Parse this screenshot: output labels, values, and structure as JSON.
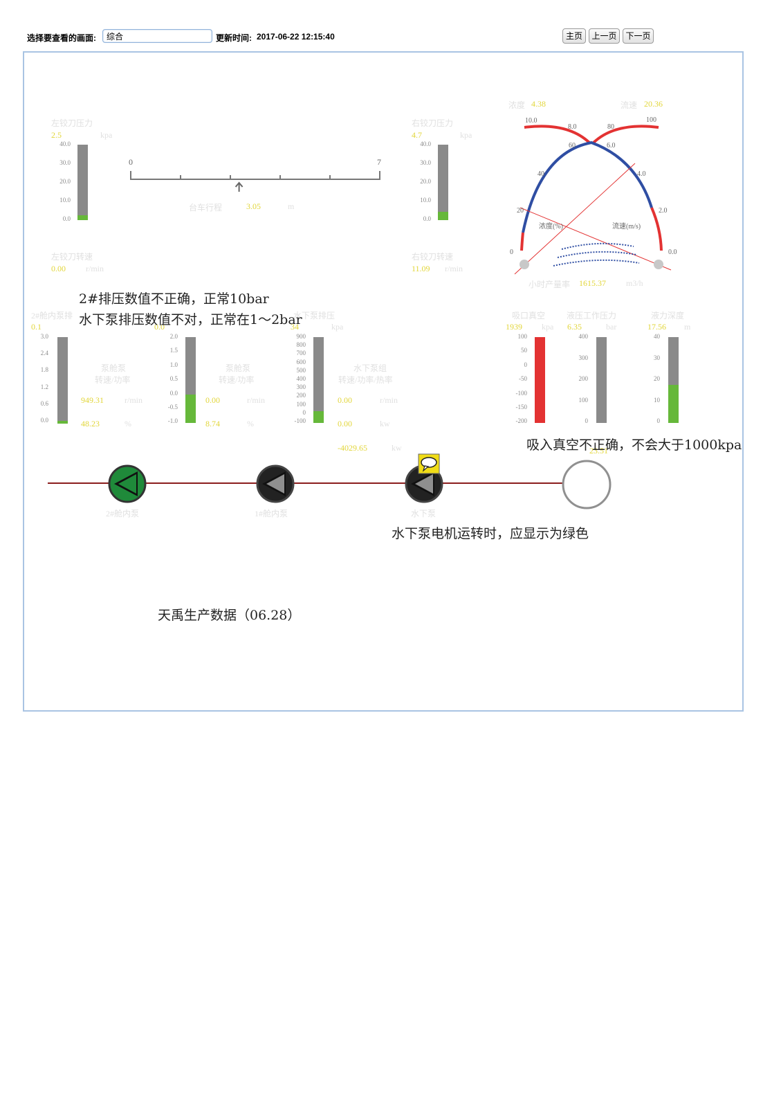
{
  "header": {
    "select_label": "选择要查看的画面:",
    "select_value": "综合",
    "update_label": "更新时间:",
    "update_time": "2017-06-22 12:15:40",
    "nav": {
      "home": "主页",
      "prev": "上一页",
      "next": "下一页"
    }
  },
  "left_reamer": {
    "pressure_label": "左铰刀压力",
    "pressure_value": "2.5",
    "pressure_unit": "kpa",
    "speed_label": "左铰刀转速",
    "speed_value": "0.00",
    "speed_unit": "r/min",
    "ticks": [
      "40.0",
      "30.0",
      "20.0",
      "10.0",
      "0.0"
    ],
    "fill_fraction": 0.06
  },
  "right_reamer": {
    "pressure_label": "右铰刀压力",
    "pressure_value": "4.7",
    "pressure_unit": "kpa",
    "speed_label": "右铰刀转速",
    "speed_value": "11.09",
    "speed_unit": "r/min",
    "ticks": [
      "40.0",
      "30.0",
      "20.0",
      "10.0",
      "0.0"
    ],
    "fill_fraction": 0.11
  },
  "traverse": {
    "min": "0",
    "max": "7",
    "label": "台车行程",
    "value": "3.05",
    "unit": "m",
    "pointer_fraction": 0.435
  },
  "flow_gauge": {
    "density_label": "浓度",
    "density_value": "4.38",
    "flow_label": "流速",
    "flow_value": "20.36",
    "density_axis_label": "浓度(%)",
    "flow_axis_label": "流速(m/s)",
    "left_scale": [
      "10.0",
      "8.0",
      "6.0",
      "4.0",
      "2.0",
      "0.0"
    ],
    "right_scale": [
      "100",
      "80",
      "60",
      "40",
      "20",
      "0"
    ],
    "hour_label": "小时产量率",
    "hour_value": "1615.37",
    "hour_unit": "m3/h"
  },
  "pumps_row": {
    "p2_label": "2#舱内泵排",
    "p2_value": "0.1",
    "p2_ticks": [
      "3.0",
      "2.4",
      "1.8",
      "1.2",
      "0.6",
      "0.0"
    ],
    "p2_fill": 0.03,
    "p1_value": "0.0",
    "p1_ticks": [
      "2.0",
      "1.5",
      "1.0",
      "0.5",
      "0.0",
      "-0.5",
      "-1.0"
    ],
    "p1_fill": 0.33,
    "uw_label": "水下泵排压",
    "uw_unit": "kpa",
    "uw_value": "34",
    "uw_ticks": [
      "900",
      "800",
      "700",
      "600",
      "500",
      "400",
      "300",
      "200",
      "100",
      "0",
      "-100"
    ],
    "uw_fill": 0.135,
    "p2_sub_label": "泵舱泵",
    "p2_sub_sub": "转速/功率",
    "p2_speed": "949.31",
    "p2_speed_unit": "r/min",
    "p2_power": "48.23",
    "p2_power_unit": "%",
    "p1_sub_label": "泵舱泵",
    "p1_sub_sub": "转速/功率",
    "p1_speed": "0.00",
    "p1_speed_unit": "r/min",
    "p1_power": "8.74",
    "p1_power_unit": "%",
    "uw_sub_label": "水下泵组",
    "uw_sub_sub": "转速/功率/热率",
    "uw_speed": "0.00",
    "uw_speed_unit": "r/min",
    "uw_power": "0.00",
    "uw_power_unit": "kw",
    "uw_heat": "-4029.65",
    "uw_heat_unit": "kw",
    "vac_label": "吸口真空",
    "vac_value": "1939",
    "vac_unit": "kpa",
    "vac_ticks": [
      "100",
      "50",
      "0",
      "-50",
      "-100",
      "-150",
      "-200"
    ],
    "vac_fill": 1.0,
    "wp_label": "液压工作压力",
    "wp_value": "6.35",
    "wp_unit": "bar",
    "wp_ticks": [
      "400",
      "300",
      "200",
      "100",
      "0"
    ],
    "wp_fill": 0.0,
    "ww_label": "液力深度",
    "ww_value": "17.56",
    "ww_unit": "m",
    "ww_ticks": [
      "40",
      "30",
      "20",
      "10",
      "0"
    ],
    "ww_fill": 0.44,
    "ww_sub_value": "23.51"
  },
  "pump_icons": {
    "p2_name": "2#舱内泵",
    "p1_name": "1#舱内泵",
    "uw_name": "水下泵"
  },
  "annotations": {
    "note1_line1": "2#排压数值不正确，正常10bar",
    "note1_line2": "水下泵排压数值不对，正常在1～2bar",
    "note2": "吸入真空不正确，不会大于1000kpa",
    "note3": "水下泵电机运转时，应显示为绿色",
    "note4": "天禹生产数据（06.28）"
  },
  "colors": {
    "bar_gray": "#8a8a8a",
    "bar_green": "#66b83a",
    "bar_red": "#e33232",
    "arc_red": "#e33232",
    "arc_blue": "#2f4ea3",
    "value_yellow": "#e2d63a"
  }
}
